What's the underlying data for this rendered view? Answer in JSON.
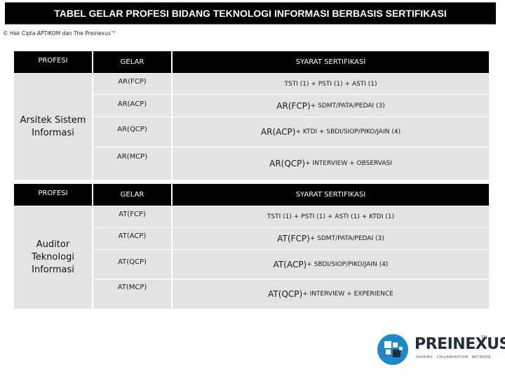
{
  "title": "TABEL GELAR PROFESI BIDANG TEKNOLOGI INFORMASI BERBASIS SERTIFIKASI",
  "copyright": "© Hak Cipta APTIKOM dan The Preinexus™",
  "headers": {
    "profesi": "PROFESI",
    "gelar": "GELAR",
    "syarat": "SYARAT SERTIFIKASI"
  },
  "sections": [
    {
      "profesi": "Arsitek Sistem Informasi",
      "rows": [
        {
          "gelar": "AR(FCP)",
          "syarat_prefix": "",
          "syarat_rest": "TSTI (1) + PSTI (1) + ASTI (1)"
        },
        {
          "gelar": "AR(ACP)",
          "syarat_prefix": "AR(FCP)",
          "syarat_rest": " + SDMT/PATA/PEDAI (3)"
        },
        {
          "gelar": "AR(QCP)",
          "syarat_prefix": "AR(ACP)",
          "syarat_rest": " + KTDI + SBDI/SIOP/PIKO/JAIN (4)"
        },
        {
          "gelar": "AR(MCP)",
          "syarat_prefix": "AR(QCP)",
          "syarat_rest": " + INTERVIEW + OBSERVASI"
        }
      ]
    },
    {
      "profesi": "Auditor Teknologi Informasi",
      "rows": [
        {
          "gelar": "AT(FCP)",
          "syarat_prefix": "",
          "syarat_rest": "TSTI (1) + PSTI (1) + ASTI (1) + KTDI (1)"
        },
        {
          "gelar": "AT(ACP)",
          "syarat_prefix": "AT(FCP)",
          "syarat_rest": "+ SDMT/PATA/PEDAI (3)"
        },
        {
          "gelar": "AT(QCP)",
          "syarat_prefix": "AT(ACP)",
          "syarat_rest": " + SBDI/SIOP/PIKO/JAIN (4)"
        },
        {
          "gelar": "AT(MCP)",
          "syarat_prefix": "AT(QCP)",
          "syarat_rest": " + INTERVIEW + EXPERIENCE"
        }
      ]
    }
  ],
  "logo": {
    "name": "PREINEXUS",
    "tm": "TM",
    "tagline": "SHARING · COLLABORATION · NETWORK",
    "colors": {
      "blue": "#1e88c8",
      "dark": "#1f2d3d"
    }
  }
}
